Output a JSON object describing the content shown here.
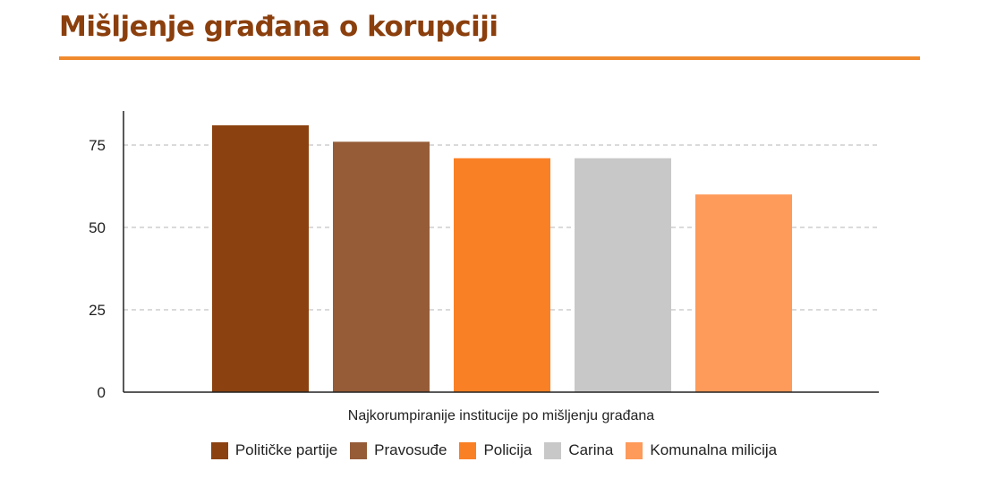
{
  "title": "Mišljenje građana o korupciji",
  "chart_data": {
    "type": "bar",
    "title": "Mišljenje građana o korupciji",
    "xlabel": "Najkorumpiranije institucije po mišljenju građana",
    "ylabel": "",
    "categories": [
      "Političke partije",
      "Pravosuđe",
      "Policija",
      "Carina",
      "Komunalna milicija"
    ],
    "values": [
      81,
      76,
      71,
      71,
      60
    ],
    "colors": [
      "#8b4210",
      "#965c38",
      "#fa8025",
      "#c8c8c8",
      "#fe9a5a"
    ],
    "ylim": [
      0,
      85
    ],
    "yticks": [
      0,
      25,
      50,
      75
    ],
    "grid": true,
    "legend_position": "bottom"
  }
}
